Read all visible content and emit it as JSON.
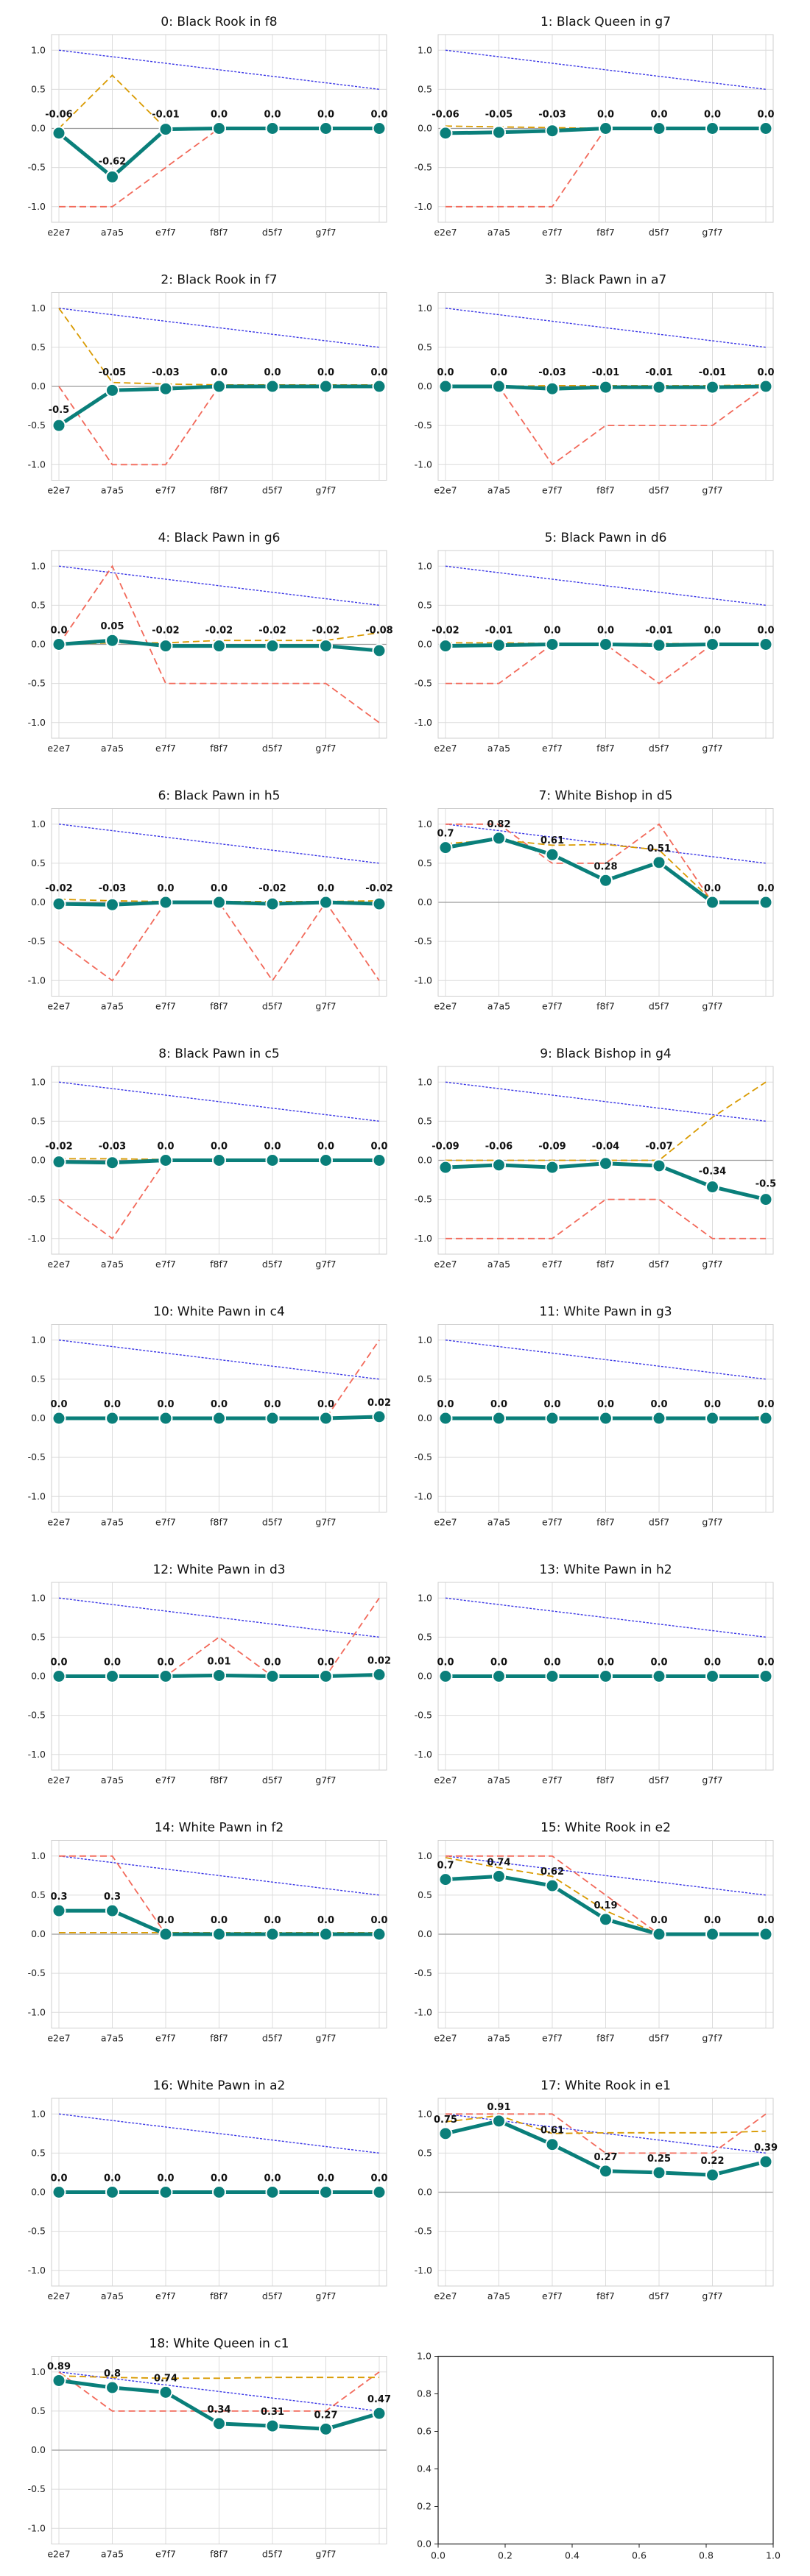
{
  "x_ticks": [
    "e2e7",
    "a7a5",
    "e7f7",
    "f8f7",
    "d5f7",
    "g7f7",
    ""
  ],
  "y_ticks": [
    "1.0",
    "0.5",
    "0.0",
    "-0.5",
    "-1.0"
  ],
  "ylim": [
    -1.2,
    1.2
  ],
  "colors": {
    "main": "#0a7f7a",
    "blue": "#3b37e6",
    "red": "#f2695a",
    "orange": "#d99a00",
    "grid": "#dcdcdc",
    "zero": "#9a9a9a"
  },
  "chart_data": [
    {
      "title": "0: Black Rook in f8",
      "type": "line",
      "values": [
        -0.06,
        -0.62,
        -0.01,
        0.0,
        0.0,
        0.0,
        0.0
      ],
      "labels": [
        "-0.06",
        "-0.62",
        "-0.01",
        "0.0",
        "0.0",
        "0.0",
        "0.0"
      ],
      "red": [
        -1,
        -1,
        -0.5,
        0,
        0,
        0,
        0
      ],
      "orange": [
        0.0,
        0.68,
        0.0,
        0.0,
        0.0,
        0.0,
        0.0
      ]
    },
    {
      "title": "1: Black Queen in g7",
      "type": "line",
      "values": [
        -0.06,
        -0.05,
        -0.03,
        0.0,
        0.0,
        0.0,
        0.0
      ],
      "labels": [
        "-0.06",
        "-0.05",
        "-0.03",
        "0.0",
        "0.0",
        "0.0",
        "0.0"
      ],
      "red": [
        -1,
        -1,
        -1,
        0,
        0,
        0,
        0
      ],
      "orange": [
        0.03,
        0.02,
        0.01,
        0.0,
        0.0,
        0.0,
        0.0
      ]
    },
    {
      "title": "2: Black Rook in f7",
      "type": "line",
      "values": [
        -0.5,
        -0.05,
        -0.03,
        0.0,
        0.0,
        0.0,
        0.0
      ],
      "labels": [
        "-0.5",
        "-0.05",
        "-0.03",
        "0.0",
        "0.0",
        "0.0",
        "0.0"
      ],
      "red": [
        0,
        -1,
        -1,
        0,
        0,
        0,
        0
      ],
      "orange": [
        1.0,
        0.05,
        0.03,
        0.02,
        0.02,
        0.02,
        0.02
      ]
    },
    {
      "title": "3: Black Pawn in a7",
      "type": "line",
      "values": [
        0.0,
        0.0,
        -0.03,
        -0.01,
        -0.01,
        -0.01,
        0.0
      ],
      "labels": [
        "0.0",
        "0.0",
        "-0.03",
        "-0.01",
        "-0.01",
        "-0.01",
        "0.0"
      ],
      "red": [
        0,
        0,
        -1,
        -0.5,
        -0.5,
        -0.5,
        0
      ],
      "orange": [
        0.0,
        0.0,
        0.01,
        0.01,
        0.01,
        0.01,
        0.02
      ]
    },
    {
      "title": "4: Black Pawn in g6",
      "type": "line",
      "values": [
        0.0,
        0.05,
        -0.02,
        -0.02,
        -0.02,
        -0.02,
        -0.08
      ],
      "labels": [
        "0.0",
        "0.05",
        "-0.02",
        "-0.02",
        "-0.02",
        "-0.02",
        "-0.08"
      ],
      "red": [
        0,
        1,
        -0.5,
        -0.5,
        -0.5,
        -0.5,
        -1
      ],
      "orange": [
        0.0,
        0.02,
        0.02,
        0.05,
        0.05,
        0.05,
        0.15
      ]
    },
    {
      "title": "5: Black Pawn in d6",
      "type": "line",
      "values": [
        -0.02,
        -0.01,
        0.0,
        0.0,
        -0.01,
        0.0,
        0.0
      ],
      "labels": [
        "-0.02",
        "-0.01",
        "0.0",
        "0.0",
        "-0.01",
        "0.0",
        "0.0"
      ],
      "red": [
        -0.5,
        -0.5,
        0,
        0,
        -0.5,
        0,
        0
      ],
      "orange": [
        0.02,
        0.02,
        0.01,
        0.01,
        0.01,
        0.01,
        0.0
      ]
    },
    {
      "title": "6: Black Pawn in h5",
      "type": "line",
      "values": [
        -0.02,
        -0.03,
        0.0,
        0.0,
        -0.02,
        0.0,
        -0.02
      ],
      "labels": [
        "-0.02",
        "-0.03",
        "0.0",
        "0.0",
        "-0.02",
        "0.0",
        "-0.02"
      ],
      "red": [
        -0.5,
        -1,
        0,
        0,
        -1,
        0,
        -1
      ],
      "orange": [
        0.04,
        0.02,
        0.01,
        0.01,
        0.01,
        0.01,
        0.02
      ]
    },
    {
      "title": "7: White Bishop in d5",
      "type": "line",
      "values": [
        0.7,
        0.82,
        0.61,
        0.28,
        0.51,
        0.0,
        0.0
      ],
      "labels": [
        "0.7",
        "0.82",
        "0.61",
        "0.28",
        "0.51",
        "0.0",
        "0.0"
      ],
      "red": [
        1,
        1,
        0.5,
        0.5,
        1,
        0,
        0
      ],
      "orange": [
        0.75,
        0.8,
        0.73,
        0.74,
        0.67,
        0.02,
        0.0
      ]
    },
    {
      "title": "8: Black Pawn in c5",
      "type": "line",
      "values": [
        -0.02,
        -0.03,
        0.0,
        0.0,
        0.0,
        0.0,
        0.0
      ],
      "labels": [
        "-0.02",
        "-0.03",
        "0.0",
        "0.0",
        "0.0",
        "0.0",
        "0.0"
      ],
      "red": [
        -0.5,
        -1,
        0,
        0,
        0,
        0,
        0
      ],
      "orange": [
        0.02,
        0.02,
        0.01,
        0.01,
        0.01,
        0.0,
        0.0
      ]
    },
    {
      "title": "9: Black Bishop in g4",
      "type": "line",
      "values": [
        -0.09,
        -0.06,
        -0.09,
        -0.04,
        -0.07,
        -0.34,
        -0.5
      ],
      "labels": [
        "-0.09",
        "-0.06",
        "-0.09",
        "-0.04",
        "-0.07",
        "-0.34",
        "-0.5"
      ],
      "red": [
        -1,
        -1,
        -1,
        -0.5,
        -0.5,
        -1,
        -1
      ],
      "orange": [
        0.0,
        0.0,
        0.0,
        0.0,
        0.0,
        0.55,
        1.0
      ]
    },
    {
      "title": "10: White Pawn in c4",
      "type": "line",
      "values": [
        0.0,
        0.0,
        0.0,
        0.0,
        0.0,
        0.0,
        0.02
      ],
      "labels": [
        "0.0",
        "0.0",
        "0.0",
        "0.0",
        "0.0",
        "0.0",
        "0.02"
      ],
      "red": [
        0,
        0,
        0,
        0,
        0,
        0,
        1
      ],
      "orange": [
        0.0,
        0.0,
        0.0,
        0.0,
        0.0,
        0.0,
        0.0
      ]
    },
    {
      "title": "11: White Pawn in g3",
      "type": "line",
      "values": [
        0.0,
        0.0,
        0.0,
        0.0,
        0.0,
        0.0,
        0.0
      ],
      "labels": [
        "0.0",
        "0.0",
        "0.0",
        "0.0",
        "0.0",
        "0.0",
        "0.0"
      ],
      "red": [
        0,
        0,
        0,
        0,
        0,
        0,
        0
      ],
      "orange": [
        0.0,
        0.0,
        0.0,
        0.0,
        0.0,
        0.0,
        0.02
      ]
    },
    {
      "title": "12: White Pawn in d3",
      "type": "line",
      "values": [
        0.0,
        0.0,
        0.0,
        0.01,
        0.0,
        0.0,
        0.02
      ],
      "labels": [
        "0.0",
        "0.0",
        "0.0",
        "0.01",
        "0.0",
        "0.0",
        "0.02"
      ],
      "red": [
        0,
        0,
        0,
        0.5,
        0,
        0,
        1
      ],
      "orange": [
        0.0,
        0.0,
        0.0,
        0.0,
        0.0,
        0.0,
        0.0
      ]
    },
    {
      "title": "13: White Pawn in h2",
      "type": "line",
      "values": [
        0.0,
        0.0,
        0.0,
        0.0,
        0.0,
        0.0,
        0.0
      ],
      "labels": [
        "0.0",
        "0.0",
        "0.0",
        "0.0",
        "0.0",
        "0.0",
        "0.0"
      ],
      "red": [
        0,
        0,
        0,
        0,
        0,
        0,
        0
      ],
      "orange": [
        0.0,
        0.0,
        0.0,
        0.0,
        0.0,
        0.0,
        0.0
      ]
    },
    {
      "title": "14: White Pawn in f2",
      "type": "line",
      "values": [
        0.3,
        0.3,
        0.0,
        0.0,
        0.0,
        0.0,
        0.0
      ],
      "labels": [
        "0.3",
        "0.3",
        "0.0",
        "0.0",
        "0.0",
        "0.0",
        "0.0"
      ],
      "red": [
        1,
        1,
        0,
        0,
        0,
        0,
        0
      ],
      "orange": [
        0.02,
        0.02,
        0.02,
        0.02,
        0.02,
        0.02,
        0.02
      ]
    },
    {
      "title": "15: White Rook in e2",
      "type": "line",
      "values": [
        0.7,
        0.74,
        0.62,
        0.19,
        0.0,
        0.0,
        0.0
      ],
      "labels": [
        "0.7",
        "0.74",
        "0.62",
        "0.19",
        "0.0",
        "0.0",
        "0.0"
      ],
      "red": [
        1,
        1,
        1,
        0.5,
        0,
        0,
        0
      ],
      "orange": [
        0.98,
        0.85,
        0.74,
        0.3,
        0.0,
        0.0,
        0.0
      ]
    },
    {
      "title": "16: White Pawn in a2",
      "type": "line",
      "values": [
        0.0,
        0.0,
        0.0,
        0.0,
        0.0,
        0.0,
        0.0
      ],
      "labels": [
        "0.0",
        "0.0",
        "0.0",
        "0.0",
        "0.0",
        "0.0",
        "0.0"
      ],
      "red": [
        0,
        0,
        0,
        0,
        0,
        0,
        0
      ],
      "orange": [
        0.0,
        0.0,
        0.0,
        0.0,
        0.0,
        0.0,
        0.0
      ]
    },
    {
      "title": "17: White Rook in e1",
      "type": "line",
      "values": [
        0.75,
        0.91,
        0.61,
        0.27,
        0.25,
        0.22,
        0.39
      ],
      "labels": [
        "0.75",
        "0.91",
        "0.61",
        "0.27",
        "0.25",
        "0.22",
        "0.39"
      ],
      "red": [
        1,
        1,
        1,
        0.5,
        0.5,
        0.5,
        1
      ],
      "orange": [
        0.9,
        0.98,
        0.75,
        0.76,
        0.76,
        0.76,
        0.78
      ]
    },
    {
      "title": "18: White Queen in c1",
      "type": "line",
      "values": [
        0.89,
        0.8,
        0.74,
        0.34,
        0.31,
        0.27,
        0.47
      ],
      "labels": [
        "0.89",
        "0.8",
        "0.74",
        "0.34",
        "0.31",
        "0.27",
        "0.47"
      ],
      "red": [
        1,
        0.5,
        0.5,
        0.5,
        0.5,
        0.5,
        1
      ],
      "orange": [
        0.95,
        0.93,
        0.92,
        0.92,
        0.93,
        0.93,
        0.93
      ]
    }
  ],
  "empty_axes": {
    "x_ticks": [
      "0.0",
      "0.2",
      "0.4",
      "0.6",
      "0.8",
      "1.0"
    ],
    "y_ticks": [
      "1.0",
      "0.8",
      "0.6",
      "0.4",
      "0.2",
      "0.0"
    ]
  }
}
